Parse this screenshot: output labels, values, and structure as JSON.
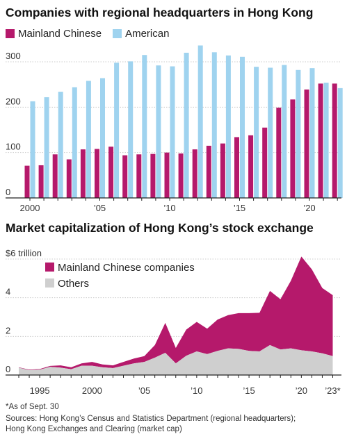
{
  "colors": {
    "mainland": "#b5196b",
    "american": "#9fd3ef",
    "others": "#cfcfcf",
    "grid": "#cccccc",
    "axis": "#222222"
  },
  "chart_data": [
    {
      "type": "bar",
      "title": "Companies with regional headquarters in Hong Kong",
      "x": [
        2000,
        2001,
        2002,
        2003,
        2004,
        2005,
        2006,
        2007,
        2008,
        2009,
        2010,
        2011,
        2012,
        2013,
        2014,
        2015,
        2016,
        2017,
        2018,
        2019,
        2020,
        2021,
        2022
      ],
      "series": [
        {
          "name": "Mainland Chinese",
          "color": "#b5196b",
          "values": [
            71,
            72,
            96,
            85,
            107,
            108,
            113,
            94,
            96,
            97,
            100,
            98,
            107,
            115,
            120,
            134,
            138,
            155,
            199,
            217,
            239,
            252,
            252
          ]
        },
        {
          "name": "American",
          "color": "#9fd3ef",
          "values": [
            213,
            222,
            234,
            244,
            258,
            264,
            298,
            301,
            315,
            292,
            290,
            320,
            336,
            321,
            314,
            311,
            289,
            287,
            293,
            282,
            286,
            254,
            242
          ]
        }
      ],
      "y_ticks": [
        0,
        100,
        200,
        300
      ],
      "ylim": [
        0,
        340
      ],
      "x_tick_labels": [
        "2000",
        "’05",
        "’10",
        "’15",
        "’20"
      ],
      "x_tick_years": [
        2000,
        2005,
        2010,
        2015,
        2020
      ],
      "legend": [
        "Mainland Chinese",
        "American"
      ],
      "grid": true
    },
    {
      "type": "area",
      "title": "Market capitalization of Hong Kong’s stock exchange",
      "x": [
        1993,
        1994,
        1995,
        1996,
        1997,
        1998,
        1999,
        2000,
        2001,
        2002,
        2003,
        2004,
        2005,
        2006,
        2007,
        2008,
        2009,
        2010,
        2011,
        2012,
        2013,
        2014,
        2015,
        2016,
        2017,
        2018,
        2019,
        2020,
        2021,
        2022,
        2023
      ],
      "series": [
        {
          "name": "Others",
          "color": "#cfcfcf",
          "values": [
            0.38,
            0.25,
            0.28,
            0.42,
            0.38,
            0.3,
            0.48,
            0.48,
            0.4,
            0.36,
            0.48,
            0.6,
            0.68,
            0.9,
            1.15,
            0.6,
            1.0,
            1.22,
            1.08,
            1.25,
            1.38,
            1.35,
            1.25,
            1.22,
            1.55,
            1.32,
            1.38,
            1.28,
            1.22,
            1.12,
            0.98
          ]
        },
        {
          "name": "Mainland Chinese companies",
          "color": "#b5196b",
          "values": [
            0.02,
            0.03,
            0.03,
            0.05,
            0.12,
            0.1,
            0.12,
            0.2,
            0.15,
            0.14,
            0.2,
            0.25,
            0.3,
            0.65,
            1.55,
            0.8,
            1.35,
            1.53,
            1.32,
            1.62,
            1.72,
            1.85,
            1.95,
            2.0,
            2.8,
            2.6,
            3.5,
            4.85,
            4.25,
            3.38,
            3.15
          ]
        }
      ],
      "y_ticks": [
        0,
        2,
        4,
        6
      ],
      "y_tick_labels": [
        "0",
        "2",
        "4",
        "$6 trillion"
      ],
      "ylim": [
        0,
        6.5
      ],
      "x_tick_labels": [
        "1995",
        "2000",
        "’05",
        "’10",
        "’15",
        "’20",
        "’23*"
      ],
      "x_tick_years": [
        1995,
        2000,
        2005,
        2010,
        2015,
        2020,
        2023
      ],
      "legend": [
        "Mainland Chinese companies",
        "Others"
      ],
      "grid": true
    }
  ],
  "footer": {
    "note": "*As of Sept. 30",
    "source1": "Sources: Hong Kong’s Census and Statistics Department (regional headquarters);",
    "source2": "Hong Kong Exchanges and Clearing (market cap)"
  }
}
